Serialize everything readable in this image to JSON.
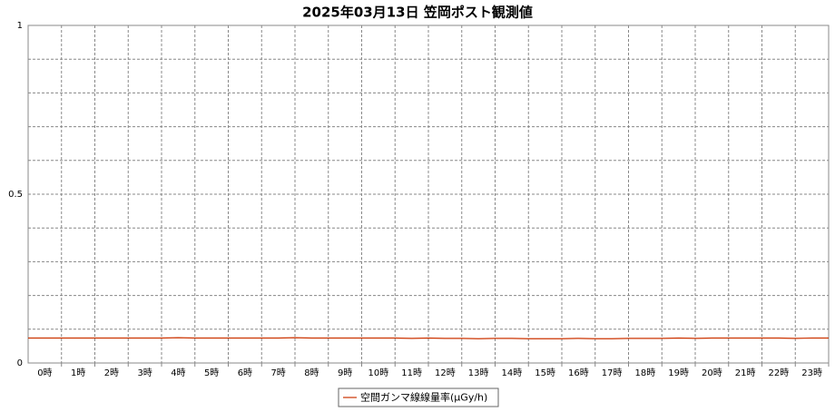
{
  "chart_data": {
    "type": "line",
    "title": "2025年03月13日 笠岡ポスト観測値",
    "categories": [
      "0時",
      "1時",
      "2時",
      "3時",
      "4時",
      "5時",
      "6時",
      "7時",
      "8時",
      "9時",
      "10時",
      "11時",
      "12時",
      "13時",
      "14時",
      "15時",
      "16時",
      "17時",
      "18時",
      "19時",
      "20時",
      "21時",
      "22時",
      "23時"
    ],
    "x": [
      0,
      0.5,
      1,
      1.5,
      2,
      2.5,
      3,
      3.5,
      4,
      4.5,
      5,
      5.5,
      6,
      6.5,
      7,
      7.5,
      8,
      8.5,
      9,
      9.5,
      10,
      10.5,
      11,
      11.5,
      12,
      12.5,
      13,
      13.5,
      14,
      14.5,
      15,
      15.5,
      16,
      16.5,
      17,
      17.5,
      18,
      18.5,
      19,
      19.5,
      20,
      20.5,
      21,
      21.5,
      22,
      22.5,
      23,
      23.5,
      24
    ],
    "series": [
      {
        "name": "空間ガンマ線線量率(μGy/h)",
        "color": "#cc3300",
        "values": [
          0.074,
          0.074,
          0.074,
          0.074,
          0.074,
          0.074,
          0.074,
          0.074,
          0.074,
          0.075,
          0.074,
          0.074,
          0.074,
          0.074,
          0.074,
          0.074,
          0.075,
          0.074,
          0.074,
          0.074,
          0.074,
          0.074,
          0.074,
          0.073,
          0.074,
          0.073,
          0.073,
          0.072,
          0.073,
          0.073,
          0.072,
          0.072,
          0.072,
          0.073,
          0.072,
          0.072,
          0.073,
          0.073,
          0.073,
          0.074,
          0.073,
          0.074,
          0.074,
          0.074,
          0.074,
          0.074,
          0.073,
          0.074,
          0.074
        ]
      }
    ],
    "xlim": [
      0,
      24
    ],
    "ylim": [
      0,
      1
    ],
    "yticks": [
      0,
      0.5,
      1
    ],
    "minor_yticks": [
      0.1,
      0.2,
      0.3,
      0.4,
      0.6,
      0.7,
      0.8,
      0.9
    ],
    "grid": true
  }
}
